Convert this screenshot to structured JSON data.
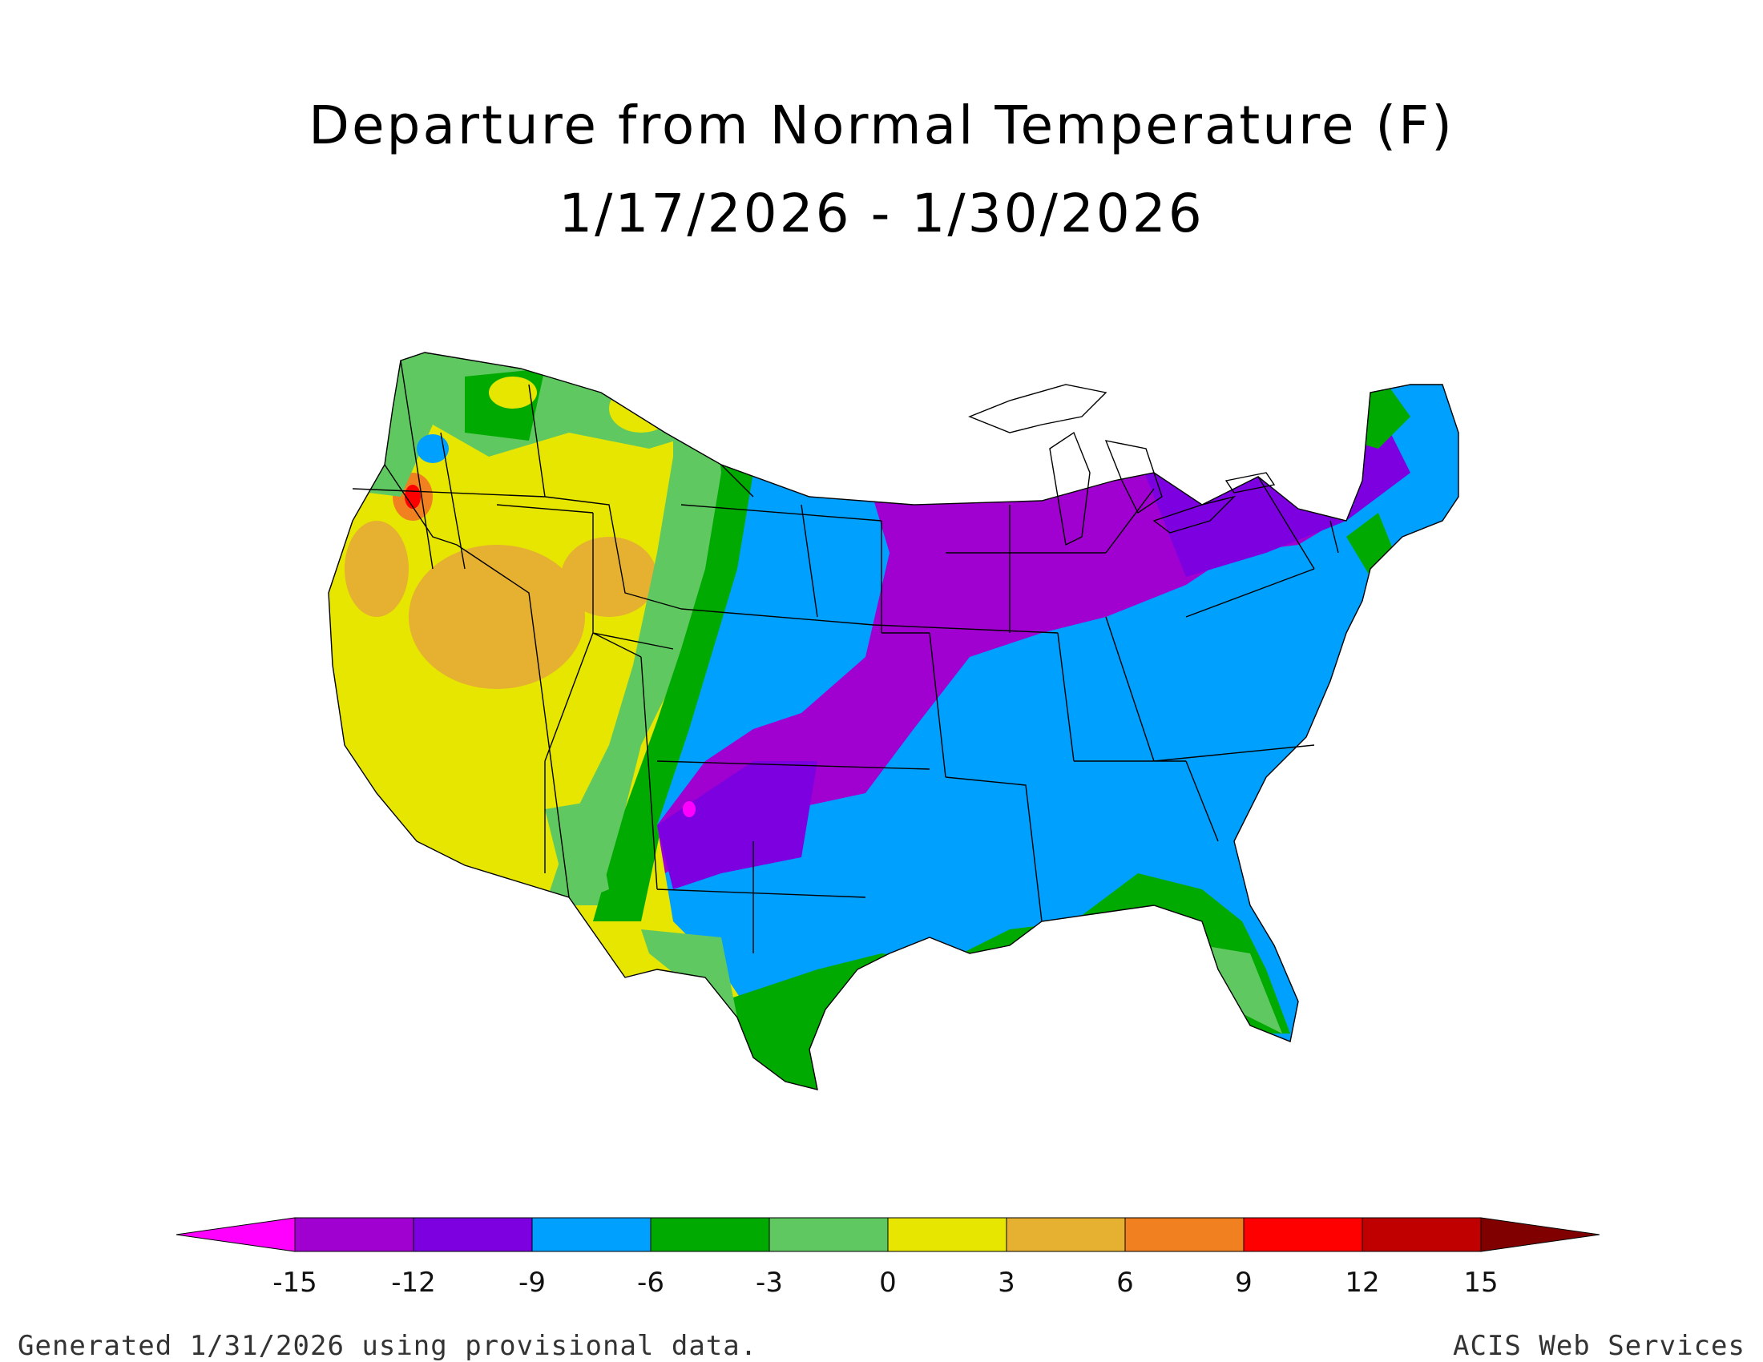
{
  "title": "Departure from Normal Temperature (F)",
  "date_range": "1/17/2026 - 1/30/2026",
  "footer": {
    "generated": "Generated 1/31/2026 using provisional data.",
    "credit": "ACIS Web Services"
  },
  "legend": {
    "ticks": [
      "-15",
      "-12",
      "-9",
      "-6",
      "-3",
      "0",
      "3",
      "6",
      "9",
      "12",
      "15"
    ],
    "colors": [
      "#ff00ff",
      "#a000d0",
      "#7c00e0",
      "#00a0ff",
      "#00aa00",
      "#60c860",
      "#e6e600",
      "#e6b030",
      "#f08020",
      "#ff0000",
      "#c00000",
      "#800000"
    ]
  },
  "colors": {
    "state_borders": "#000000",
    "coastline": "#000000",
    "background": "#ffffff"
  }
}
